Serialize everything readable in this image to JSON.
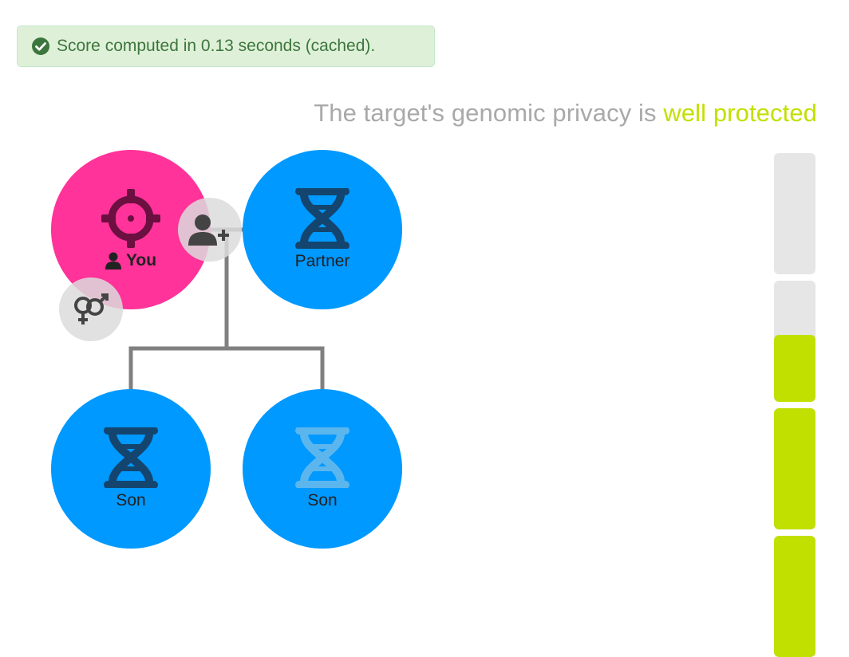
{
  "status": {
    "message": "Score computed in 0.13 seconds (cached).",
    "icon": "check-circle-icon",
    "color": "#3c763d"
  },
  "headline": {
    "prefix": "The target's genomic privacy is ",
    "verdict": "well protected",
    "verdict_color": "#c2e000"
  },
  "tree": {
    "you": {
      "label": "You",
      "icon": "crosshair-target-icon",
      "color": "#ff3399"
    },
    "partner": {
      "label": "Partner",
      "icon": "dna-icon",
      "color": "#0099ff"
    },
    "children": [
      {
        "label": "Son",
        "icon": "dna-icon",
        "sequenced": true
      },
      {
        "label": "Son",
        "icon": "dna-icon",
        "sequenced": false
      }
    ],
    "actions": {
      "add_partner": "add-person-icon",
      "change_sex": "gender-icon"
    }
  },
  "privacy_meter": {
    "segments": [
      0,
      0.55,
      1,
      1
    ],
    "fill_color": "#c2e000"
  }
}
